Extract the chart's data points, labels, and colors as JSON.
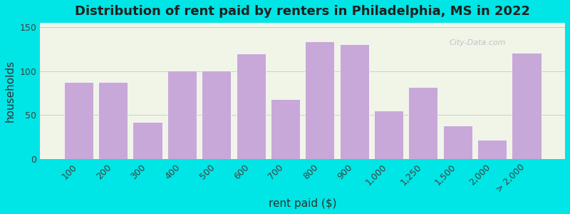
{
  "title": "Distribution of rent paid by renters in Philadelphia, MS in 2022",
  "xlabel": "rent paid ($)",
  "ylabel": "households",
  "bar_color": "#c8a8d8",
  "bar_edge_color": "#ffffff",
  "background_outer": "#00e5e5",
  "background_inner_top": "#e8f0d8",
  "background_inner_bottom": "#f8f0ff",
  "ylim": [
    0,
    155
  ],
  "yticks": [
    0,
    50,
    100,
    150
  ],
  "categories": [
    "100",
    "200",
    "300",
    "400",
    "500",
    "600",
    "700",
    "800",
    "900",
    "1,000",
    "1,250",
    "1,500",
    "2,000",
    "> 2,000"
  ],
  "bars_data": [
    {
      "label": "100",
      "value": 88
    },
    {
      "label": "200",
      "value": 88
    },
    {
      "label": "300",
      "value": 42
    },
    {
      "label": "400",
      "value": 101
    },
    {
      "label": "500",
      "value": 101
    },
    {
      "label": "600",
      "value": 120
    },
    {
      "label": "700",
      "value": 68
    },
    {
      "label": "800",
      "value": 134
    },
    {
      "label": "900",
      "value": 131
    },
    {
      "label": "1,000",
      "value": 55
    },
    {
      "label": "1,250",
      "value": 82
    },
    {
      "label": "1,500",
      "value": 38
    },
    {
      "label": "2,000",
      "value": 22
    },
    {
      "> 2,000": "> 2,000",
      "value": 121
    }
  ],
  "title_fontsize": 13,
  "axis_label_fontsize": 11,
  "tick_fontsize": 9,
  "grid_color": "#cccccc",
  "watermark": "City-Data.com"
}
